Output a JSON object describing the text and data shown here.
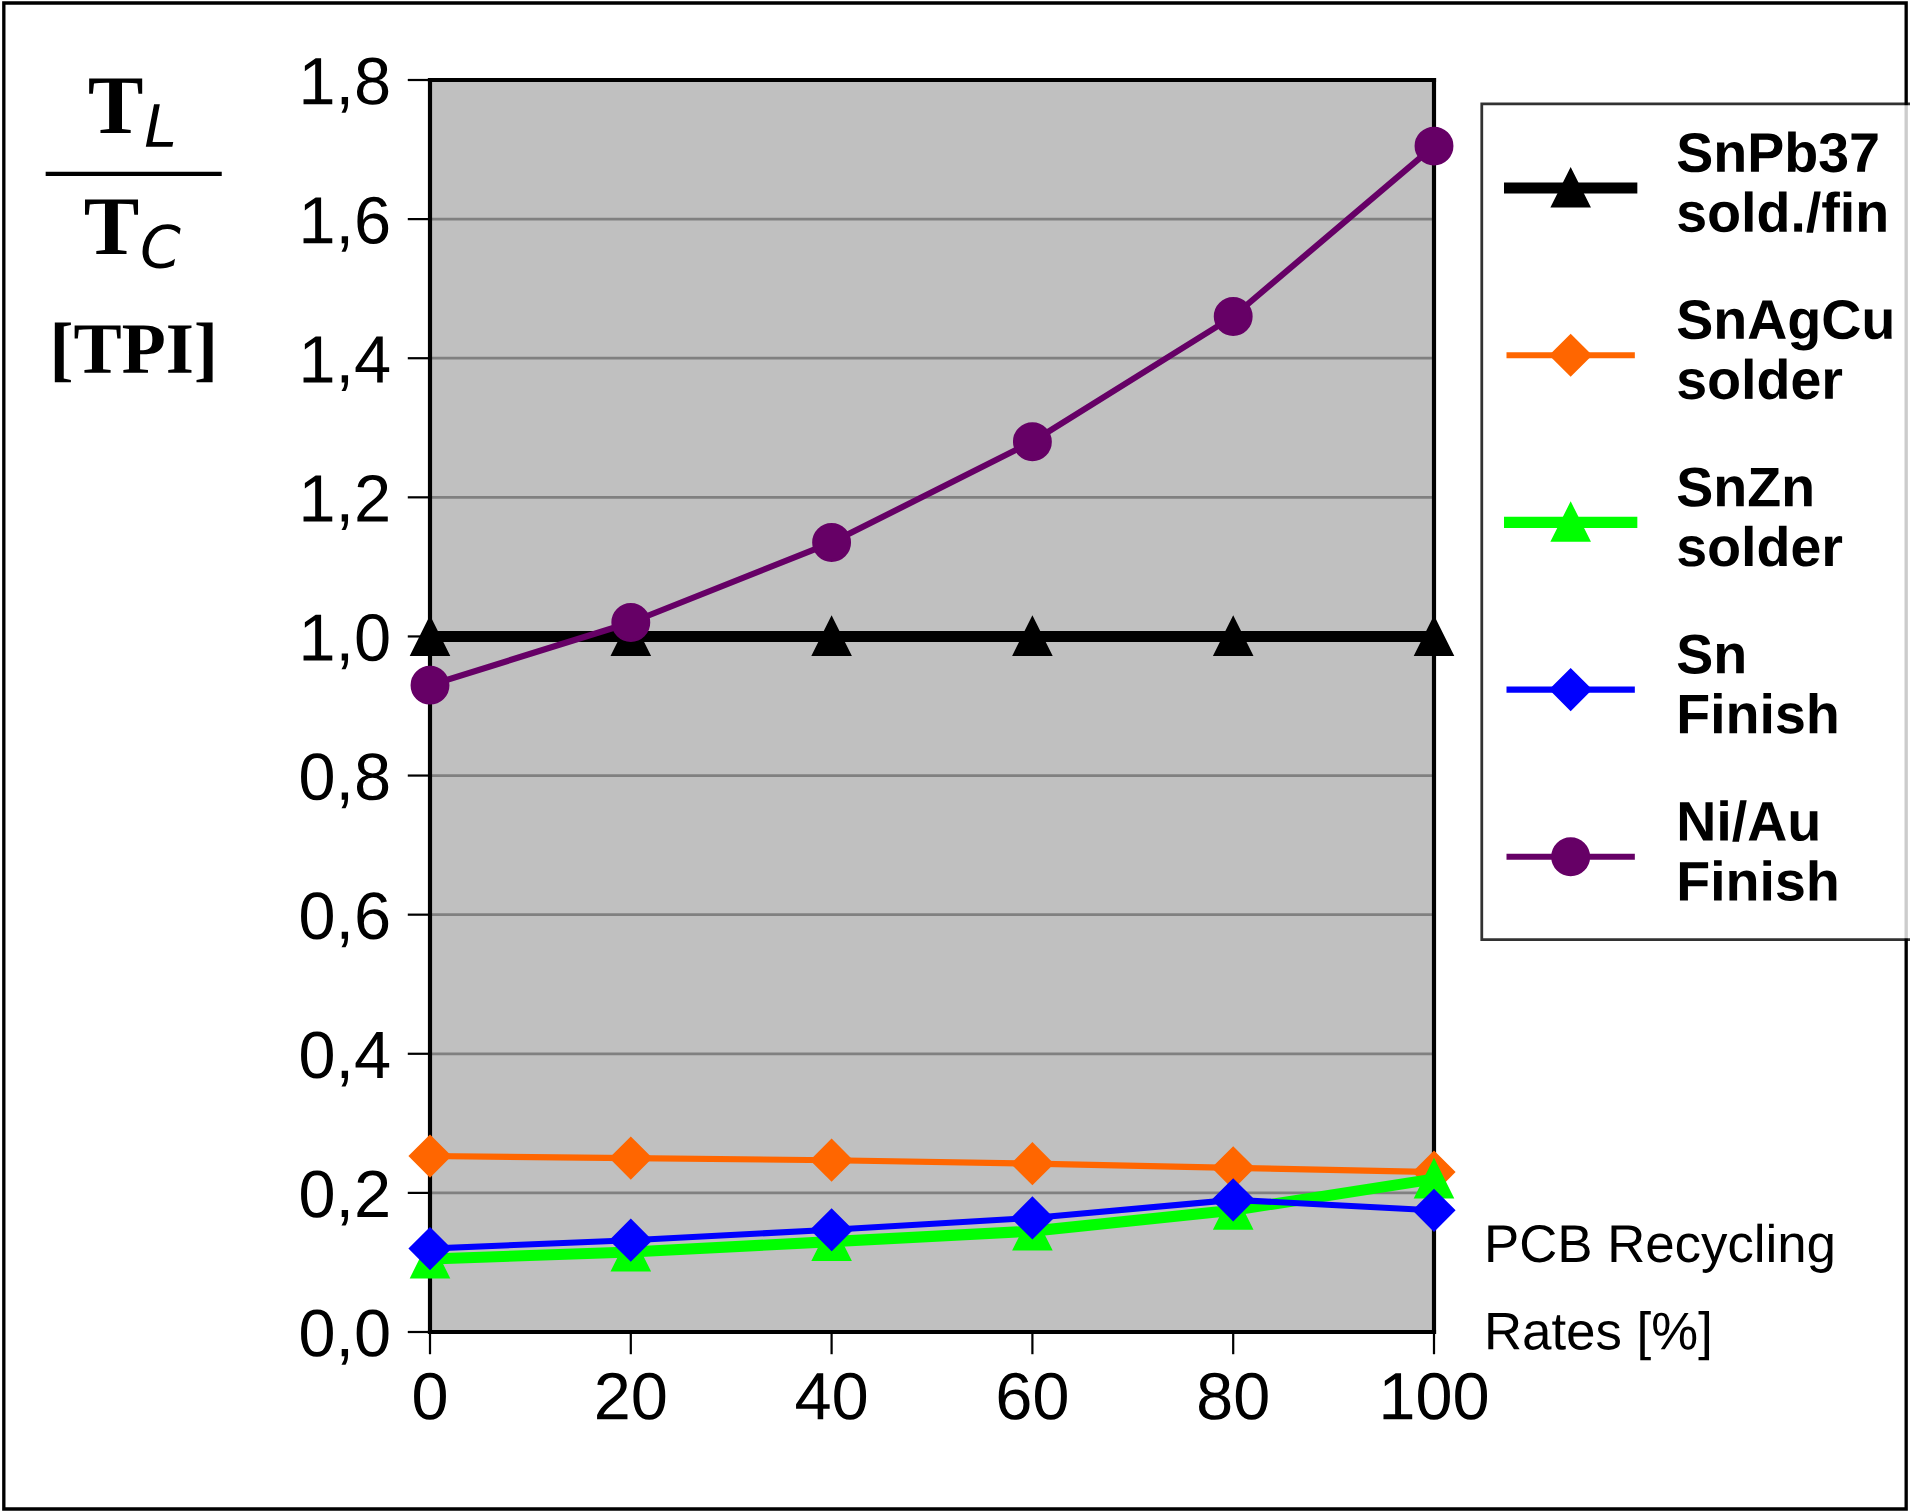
{
  "chart_data": {
    "type": "line",
    "ylabel": "T$_{L}$\nT$_{C}$\n[TPI]",
    "xlabel": "PCB Recycling\nRates [%]",
    "x": [
      0,
      20,
      40,
      60,
      80,
      100
    ],
    "xlim": [
      0,
      100
    ],
    "xticks": [
      0,
      20,
      40,
      60,
      80,
      100
    ],
    "ylim": [
      0,
      1.8
    ],
    "yticks": [
      {
        "value": 0,
        "label": "0,0"
      },
      {
        "value": 0.2,
        "label": "0,2"
      },
      {
        "value": 0.4,
        "label": "0,4"
      },
      {
        "value": 0.6,
        "label": "0,6"
      },
      {
        "value": 0.8,
        "label": "0,8"
      },
      {
        "value": 1.0,
        "label": "1,0"
      },
      {
        "value": 1.2,
        "label": "1,2"
      },
      {
        "value": 1.4,
        "label": "1,4"
      },
      {
        "value": 1.6,
        "label": "1,6"
      },
      {
        "value": 1.8,
        "label": "1,8"
      }
    ],
    "grid": "y",
    "legend": "right",
    "series": [
      {
        "name": "SnPb37\nsold./fin",
        "color": "#000000",
        "marker": "triangle",
        "values": [
          1.0,
          1.0,
          1.0,
          1.0,
          1.0,
          1.0
        ]
      },
      {
        "name": "SnAgCu\nsolder",
        "color": "#ff6600",
        "marker": "diamond",
        "values": [
          0.253,
          0.25,
          0.247,
          0.242,
          0.236,
          0.23
        ]
      },
      {
        "name": "SnZn\nsolder",
        "color": "#00ff00",
        "marker": "triangle",
        "values": [
          0.105,
          0.115,
          0.13,
          0.145,
          0.175,
          0.22
        ]
      },
      {
        "name": "Sn\nFinish",
        "color": "#0000ff",
        "marker": "diamond",
        "values": [
          0.12,
          0.132,
          0.147,
          0.164,
          0.19,
          0.175
        ]
      },
      {
        "name": "Ni/Au\nFinish",
        "color": "#660066",
        "marker": "circle",
        "values": [
          0.93,
          1.02,
          1.135,
          1.28,
          1.46,
          1.705
        ]
      }
    ]
  }
}
